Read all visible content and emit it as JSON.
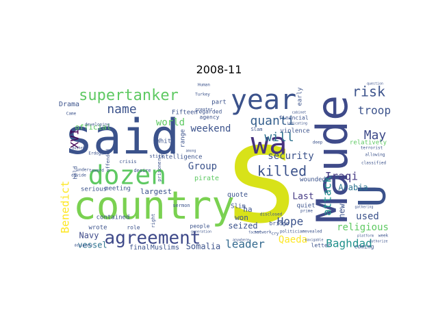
{
  "chart_data": {
    "type": "wordcloud",
    "title": "2008-11",
    "background": "#ffffff",
    "palette": [
      "#440154",
      "#3b528b",
      "#21918c",
      "#5ec962",
      "#fde725"
    ],
    "words": [
      {
        "text": "s",
        "color": "#d8e219"
      },
      {
        "text": "said",
        "color": "#3b528b"
      },
      {
        "text": "country",
        "color": "#7ad151"
      },
      {
        "text": "Maude",
        "color": "#3e4a89"
      },
      {
        "text": "wa",
        "color": "#46337e"
      },
      {
        "text": "year",
        "color": "#3b528b"
      },
      {
        "text": "dozen",
        "color": "#5ec962"
      },
      {
        "text": "U",
        "color": "#3b528b"
      },
      {
        "text": "agreement",
        "color": "#3e4989"
      },
      {
        "text": "supertanker",
        "color": "#5ec962"
      },
      {
        "text": "killed",
        "color": "#3b528b"
      },
      {
        "text": "risk",
        "color": "#3b528b"
      },
      {
        "text": "quanti",
        "color": "#355f8d"
      },
      {
        "text": "will",
        "color": "#2c728e"
      },
      {
        "text": "May",
        "color": "#3e4a89"
      },
      {
        "text": "name",
        "color": "#3b528b"
      },
      {
        "text": "Baghdad",
        "color": "#21918c"
      },
      {
        "text": "troop",
        "color": "#3b528b"
      },
      {
        "text": "Iraqi",
        "color": "#443983"
      },
      {
        "text": "leader",
        "color": "#31688e"
      },
      {
        "text": "security",
        "color": "#3b528b"
      },
      {
        "text": "Benedict",
        "color": "#fde725"
      },
      {
        "text": "XVI",
        "color": "#440154"
      },
      {
        "text": "attack",
        "color": "#21918c"
      },
      {
        "text": "Hope",
        "color": "#3b528b"
      },
      {
        "text": "Qaeda",
        "color": "#fde725"
      },
      {
        "text": "world",
        "color": "#5ec962"
      },
      {
        "text": "Group",
        "color": "#3b528b"
      },
      {
        "text": "religious",
        "color": "#5ec962"
      },
      {
        "text": "weekend",
        "color": "#3b528b"
      },
      {
        "text": "used",
        "color": "#3b528b"
      },
      {
        "text": "Last",
        "color": "#443983"
      },
      {
        "text": "Arabia",
        "color": "#2c728e"
      },
      {
        "text": "new",
        "color": "#3b528b"
      },
      {
        "text": "Somalia",
        "color": "#3b528b"
      },
      {
        "text": "official",
        "color": "#5ec962"
      },
      {
        "text": "Navy",
        "color": "#3e4a89"
      },
      {
        "text": "vessel",
        "color": "#2c728e"
      },
      {
        "text": "largest",
        "color": "#3b528b"
      },
      {
        "text": "seized",
        "color": "#3b528b"
      },
      {
        "text": "won",
        "color": "#3b528b"
      },
      {
        "text": "Drama",
        "color": "#3b528b"
      },
      {
        "text": "pirate",
        "color": "#5ec962"
      },
      {
        "text": "ha",
        "color": "#3b528b"
      },
      {
        "text": "wounded",
        "color": "#3b528b"
      },
      {
        "text": "final",
        "color": "#3b528b"
      },
      {
        "text": "Muslims",
        "color": "#3b528b"
      },
      {
        "text": "quote",
        "color": "#3b528b"
      },
      {
        "text": "Slim",
        "color": "#3b528b"
      },
      {
        "text": "quiet",
        "color": "#3b528b"
      },
      {
        "text": "early",
        "color": "#3b528b"
      },
      {
        "text": "meeting",
        "color": "#3b528b"
      },
      {
        "text": "serious",
        "color": "#3b528b"
      },
      {
        "text": "contained",
        "color": "#3b528b"
      },
      {
        "text": "range",
        "color": "#3b528b"
      },
      {
        "text": "Fifteen",
        "color": "#3b528b"
      },
      {
        "text": "intelligence",
        "color": "#3b528b"
      },
      {
        "text": "White",
        "color": "#3b528b"
      },
      {
        "text": "violence",
        "color": "#3b528b"
      },
      {
        "text": "part",
        "color": "#3b528b"
      },
      {
        "text": "regarded",
        "color": "#3b528b"
      },
      {
        "text": "agency",
        "color": "#3b528b"
      },
      {
        "text": "financial",
        "color": "#3b528b"
      },
      {
        "text": "relatively",
        "color": "#5ec962"
      },
      {
        "text": "coming",
        "color": "#3b528b"
      },
      {
        "text": "letter",
        "color": "#3b528b"
      },
      {
        "text": "wrote",
        "color": "#3b528b"
      },
      {
        "text": "held",
        "color": "#3b528b"
      },
      {
        "text": "right",
        "color": "#3b528b"
      },
      {
        "text": "role",
        "color": "#3b528b"
      },
      {
        "text": "people",
        "color": "#3b528b"
      },
      {
        "text": "bridge",
        "color": "#3b528b"
      },
      {
        "text": "Slam",
        "color": "#3b528b"
      },
      {
        "text": "prisoner",
        "color": "#3b528b"
      },
      {
        "text": "sermon",
        "color": "#3b528b"
      },
      {
        "text": "offended",
        "color": "#3b528b"
      },
      {
        "text": "crisis",
        "color": "#3b528b"
      },
      {
        "text": "desire",
        "color": "#3b528b"
      },
      {
        "text": "stick",
        "color": "#3b528b"
      },
      {
        "text": "Human",
        "color": "#3b528b"
      },
      {
        "text": "Turkey",
        "color": "#3b528b"
      },
      {
        "text": "terrorist",
        "color": "#3b528b"
      },
      {
        "text": "classified",
        "color": "#3b528b"
      },
      {
        "text": "politician",
        "color": "#3b528b"
      },
      {
        "text": "revealed",
        "color": "#3b528b"
      },
      {
        "text": "disclosed",
        "color": "#3b528b"
      },
      {
        "text": "network",
        "color": "#3b528b"
      },
      {
        "text": "cry",
        "color": "#3b528b"
      },
      {
        "text": "deep",
        "color": "#3b528b"
      },
      {
        "text": "greater",
        "color": "#3b528b"
      },
      {
        "text": "cabinet",
        "color": "#3b528b"
      },
      {
        "text": "developing",
        "color": "#3b528b"
      },
      {
        "text": "Erdogan",
        "color": "#3b528b"
      },
      {
        "text": "divide",
        "color": "#3b528b"
      },
      {
        "text": "under",
        "color": "#3b528b"
      },
      {
        "text": "toward",
        "color": "#3b528b"
      },
      {
        "text": "Came",
        "color": "#3b528b"
      },
      {
        "text": "allowing",
        "color": "#3b528b"
      },
      {
        "text": "week",
        "color": "#3b528b"
      },
      {
        "text": "authorize",
        "color": "#3b528b"
      },
      {
        "text": "navigable",
        "color": "#3b528b"
      },
      {
        "text": "designate",
        "color": "#3b528b"
      },
      {
        "text": "anywhere",
        "color": "#3b528b"
      },
      {
        "text": "factor",
        "color": "#3b528b"
      },
      {
        "text": "indicating",
        "color": "#3b528b"
      },
      {
        "text": "platform",
        "color": "#3b528b"
      },
      {
        "text": "prime",
        "color": "#3b528b"
      },
      {
        "text": "Bushehr",
        "color": "#3b528b"
      },
      {
        "text": "gathering",
        "color": "#3b528b"
      },
      {
        "text": "generation",
        "color": "#3b528b"
      },
      {
        "text": "Pakistan",
        "color": "#3b528b"
      },
      {
        "text": "question",
        "color": "#3b528b"
      },
      {
        "text": "among",
        "color": "#3b528b"
      }
    ]
  }
}
